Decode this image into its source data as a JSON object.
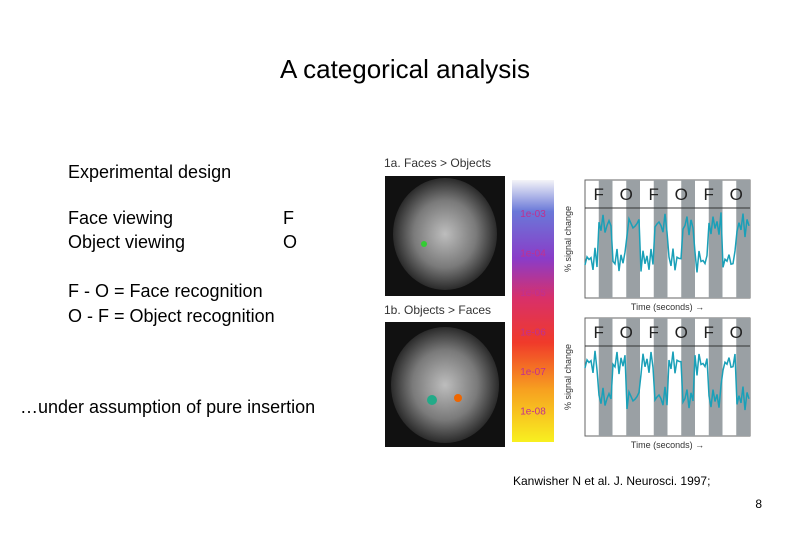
{
  "slide": {
    "title": "A categorical analysis",
    "design_heading": "Experimental design",
    "conditions": [
      {
        "name": "Face viewing",
        "code": "F"
      },
      {
        "name": "Object viewing",
        "code": "O"
      }
    ],
    "contrasts": [
      "F - O = Face recognition",
      "O - F = Object recognition"
    ],
    "assumption": "…under assumption of pure insertion",
    "citation": "Kanwisher N et al. J. Neurosci. 1997;",
    "page_number": "8"
  },
  "figure": {
    "panel_a_label": "1a. Faces > Objects",
    "panel_b_label": "1b. Objects > Faces",
    "colorbar_labels": [
      "1e-03",
      "1e-04",
      "1e-05",
      "1e-06",
      "1e-07",
      "1e-08"
    ],
    "block_labels": [
      "F",
      "O",
      "F",
      "O",
      "F",
      "O"
    ],
    "y_axis_label": "% signal change",
    "x_axis_label": "Time (seconds) →"
  }
}
